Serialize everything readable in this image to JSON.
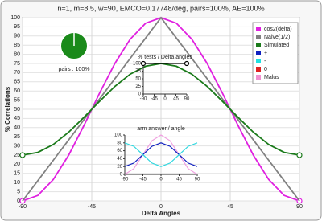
{
  "chart_data": [
    {
      "type": "line",
      "title": "n=1, m=8.5, w=90, EMCO=0.17748/deg, pairs=100%, AE=100%",
      "x_label": "Delta Angles",
      "y_label": "% Correlations",
      "x": [
        -90,
        -80,
        -70,
        -60,
        -50,
        -40,
        -30,
        -20,
        -10,
        0,
        10,
        20,
        30,
        40,
        50,
        60,
        70,
        80,
        90
      ],
      "xlim": [
        -90,
        90
      ],
      "xticks": [
        -90,
        -45,
        0,
        45,
        90
      ],
      "ylim": [
        0,
        100
      ],
      "yticks": [
        0,
        5,
        10,
        15,
        20,
        25,
        30,
        35,
        40,
        45,
        50,
        55,
        60,
        65,
        70,
        75,
        80,
        85,
        90,
        95,
        100
      ],
      "grid": true,
      "series": [
        {
          "name": "cos2(delta)",
          "color": "#e020e0",
          "markers": "ends",
          "values": [
            0,
            3.0,
            11.7,
            25,
            41.3,
            58.7,
            75,
            88.3,
            97.0,
            100,
            97.0,
            88.3,
            75,
            58.7,
            41.3,
            25,
            11.7,
            3.0,
            0
          ]
        },
        {
          "name": "Naive(1/2)",
          "color": "#808080",
          "values": [
            0,
            11.1,
            22.2,
            33.3,
            44.4,
            55.6,
            66.7,
            77.8,
            88.9,
            100,
            88.9,
            77.8,
            66.7,
            55.6,
            44.4,
            33.3,
            22.2,
            11.1,
            0
          ]
        },
        {
          "name": "Simulated",
          "color": "#1a7a1a",
          "markers": "ends",
          "values": [
            25,
            26.5,
            30.8,
            37.5,
            45.7,
            54.3,
            62.5,
            69.2,
            73.5,
            75,
            73.5,
            69.2,
            62.5,
            54.3,
            45.7,
            37.5,
            30.8,
            26.5,
            25
          ]
        }
      ],
      "legend": {
        "position": "top-right",
        "entries": [
          {
            "name": "cos2(delta)",
            "color": "#e020e0"
          },
          {
            "name": "Naive(1/2)",
            "color": "#808080"
          },
          {
            "name": "Simulated",
            "color": "#1a7a1a"
          },
          {
            "name": "+",
            "color": "#1020c0"
          },
          {
            "name": "-",
            "color": "#20e0e0"
          },
          {
            "name": "0",
            "color": "#e02020"
          },
          {
            "name": "Malus",
            "color": "#f090d0"
          }
        ]
      }
    },
    {
      "type": "pie",
      "values": [
        100
      ],
      "color": "#1a8a1a",
      "label": "pairs : 100%"
    },
    {
      "type": "line",
      "title": "% tests / Delta angles",
      "x": [
        -90,
        90
      ],
      "xlim": [
        -90,
        90
      ],
      "xticks": [
        -90,
        -45,
        0,
        45,
        90
      ],
      "ylim": [
        0,
        100
      ],
      "yticks": [
        0,
        25,
        50,
        75,
        100
      ],
      "series": [
        {
          "color": "#000000",
          "markers": "ends",
          "values": [
            100,
            100
          ]
        }
      ]
    },
    {
      "type": "line",
      "title": "arm answer / angle",
      "x": [
        -90,
        -67.5,
        -45,
        -22.5,
        0,
        22.5,
        45,
        67.5,
        90
      ],
      "xlim": [
        -90,
        90
      ],
      "xticks": [
        -90,
        -45,
        0,
        45,
        90
      ],
      "ylim": [
        0,
        100
      ],
      "yticks": [
        0,
        20,
        40,
        60,
        80,
        100
      ],
      "series": [
        {
          "color": "#f0a0e0",
          "values": [
            0,
            14.6,
            50,
            85.4,
            100,
            85.4,
            50,
            14.6,
            0
          ]
        },
        {
          "color": "#1020c0",
          "values": [
            20,
            28.8,
            50,
            71.2,
            80,
            71.2,
            50,
            28.8,
            20
          ]
        },
        {
          "color": "#30d8e0",
          "values": [
            80,
            71.2,
            50,
            28.8,
            20,
            28.8,
            50,
            71.2,
            80
          ]
        }
      ]
    }
  ]
}
